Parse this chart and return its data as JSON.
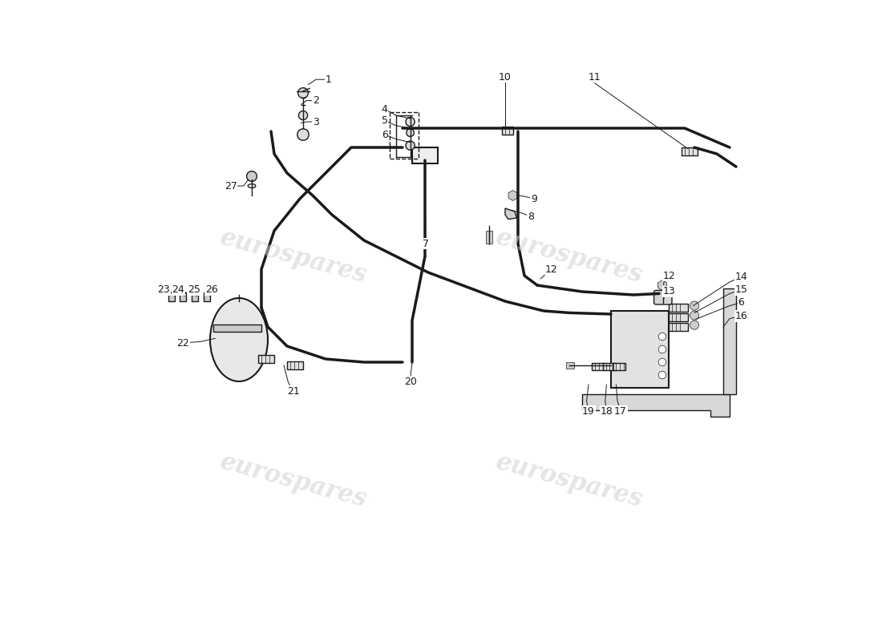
{
  "bg_color": "#ffffff",
  "line_color": "#1a1a1a",
  "watermark_color": "#d0d0d0",
  "watermark_text": "eurospares",
  "title": "",
  "fig_width": 11.0,
  "fig_height": 8.0,
  "dpi": 100
}
